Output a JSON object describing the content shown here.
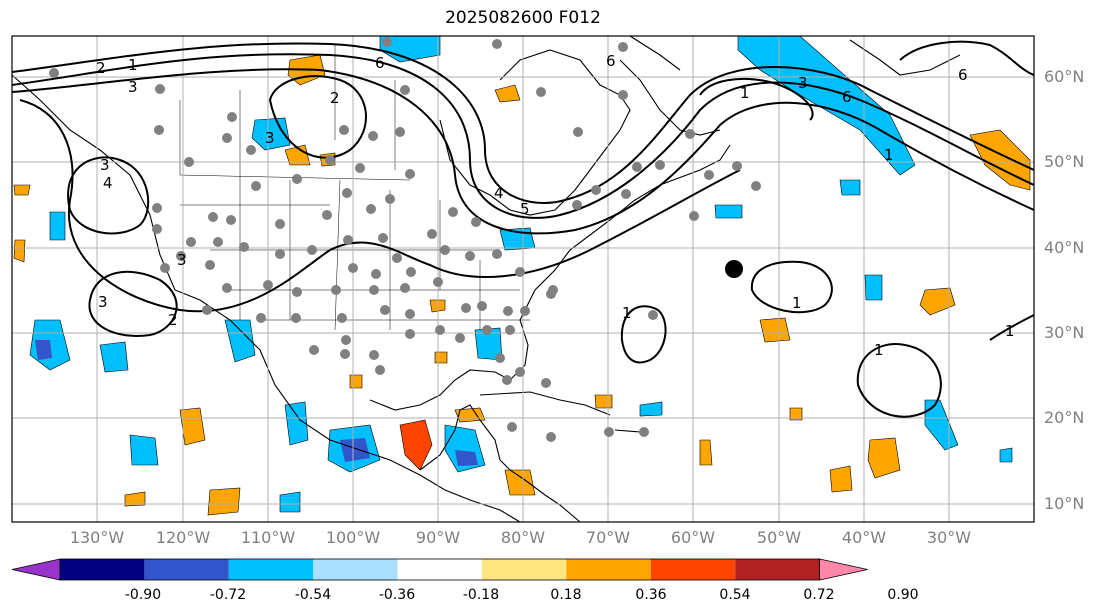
{
  "title": "2025082600 F012",
  "lat_labels": [
    "60°N",
    "50°N",
    "40°N",
    "30°N",
    "20°N",
    "10°N"
  ],
  "lon_labels": [
    "130°W",
    "120°W",
    "110°W",
    "100°W",
    "90°W",
    "80°W",
    "70°W",
    "60°W",
    "50°W",
    "40°W",
    "30°W"
  ],
  "colorbar": {
    "labels": [
      "-0.90",
      "-0.72",
      "-0.54",
      "-0.36",
      "-0.18",
      "0.18",
      "0.36",
      "0.54",
      "0.72",
      "0.90"
    ],
    "colors": [
      "#9933cc",
      "#000080",
      "#3355cc",
      "#00bfff",
      "#aadfff",
      "#ffffff",
      "#ffe680",
      "#ffa500",
      "#ff4400",
      "#b22222",
      "#ff88aa"
    ]
  },
  "contour_labels": [
    "1",
    "2",
    "3",
    "4",
    "5",
    "6"
  ],
  "colors": {
    "positive_shading": "#ffa500",
    "strong_positive": "#ff4400",
    "negative_shading": "#00bfff",
    "strong_negative": "#3355cc",
    "station_dots": "#808080",
    "grid": "#b0b0b0"
  }
}
